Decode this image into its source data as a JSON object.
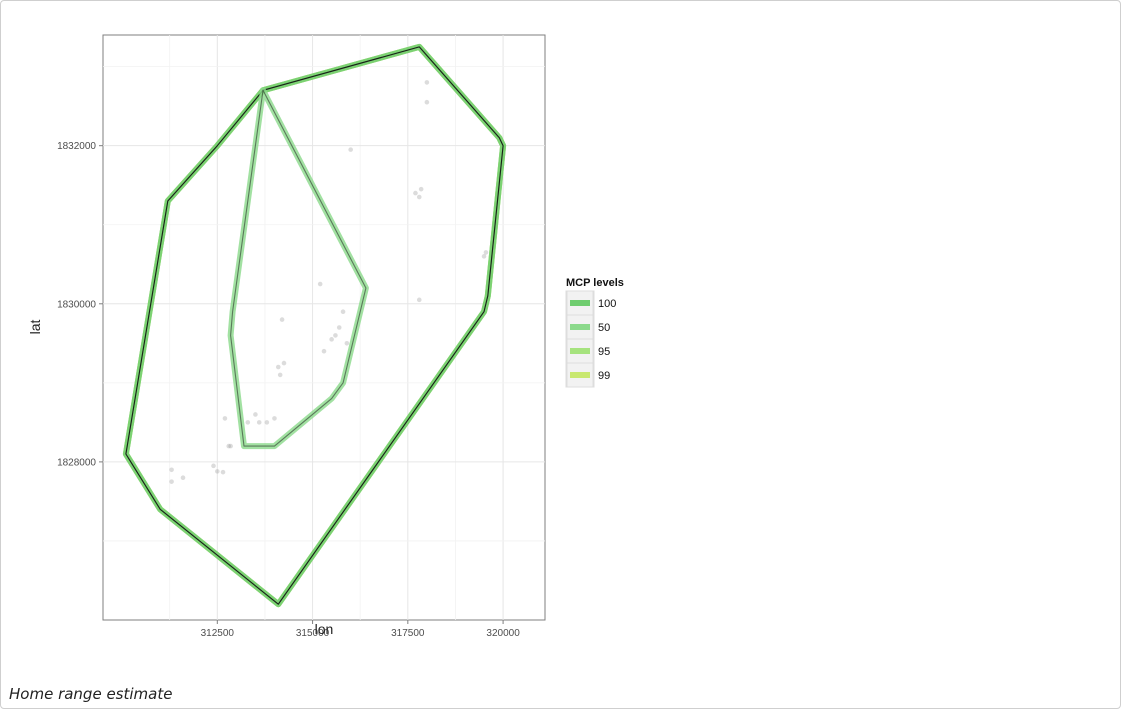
{
  "caption": "Home range estimate",
  "chart_data": {
    "type": "scatter",
    "xlabel": "lon",
    "ylabel": "lat",
    "xlim": [
      309500,
      321100
    ],
    "ylim": [
      1826000,
      1833400
    ],
    "x_ticks": [
      312500,
      315000,
      317500,
      320000
    ],
    "x_tick_labels": [
      "312500",
      "315000",
      "317500",
      "320000"
    ],
    "y_ticks": [
      1828000,
      1830000,
      1832000
    ],
    "y_tick_labels": [
      "1828000",
      "1830000",
      "1832000"
    ],
    "grid": true,
    "legend": {
      "title": "MCP levels",
      "position": "right",
      "entries": [
        "100",
        "50",
        "95",
        "99"
      ],
      "colors": [
        "#6fcd6f",
        "#8bd98b",
        "#a6e37e",
        "#c8e86f"
      ]
    },
    "points": [
      [
        311300,
        1827900
      ],
      [
        311300,
        1827750
      ],
      [
        311600,
        1827800
      ],
      [
        312400,
        1827950
      ],
      [
        312500,
        1827880
      ],
      [
        312650,
        1827870
      ],
      [
        312700,
        1828550
      ],
      [
        312800,
        1828200
      ],
      [
        312850,
        1828200
      ],
      [
        313300,
        1828500
      ],
      [
        313500,
        1828600
      ],
      [
        313600,
        1828500
      ],
      [
        313800,
        1828500
      ],
      [
        314000,
        1828550
      ],
      [
        314100,
        1829200
      ],
      [
        314150,
        1829100
      ],
      [
        314250,
        1829250
      ],
      [
        314200,
        1829800
      ],
      [
        315200,
        1830250
      ],
      [
        315300,
        1829400
      ],
      [
        315500,
        1829550
      ],
      [
        315600,
        1829600
      ],
      [
        315700,
        1829700
      ],
      [
        315900,
        1829500
      ],
      [
        315800,
        1829900
      ],
      [
        316000,
        1831950
      ],
      [
        317700,
        1831400
      ],
      [
        317800,
        1831350
      ],
      [
        317850,
        1831450
      ],
      [
        318000,
        1832550
      ],
      [
        318000,
        1832800
      ],
      [
        317800,
        1830050
      ],
      [
        319500,
        1830600
      ],
      [
        319550,
        1830650
      ]
    ],
    "series": [
      {
        "name": "100",
        "color": "#6fcd6f",
        "polygon": [
          [
            317800,
            1833250
          ],
          [
            319900,
            1832100
          ],
          [
            320000,
            1832000
          ],
          [
            319600,
            1830100
          ],
          [
            319500,
            1829900
          ],
          [
            314100,
            1826200
          ],
          [
            311000,
            1827400
          ],
          [
            310100,
            1828100
          ],
          [
            311200,
            1831300
          ],
          [
            312500,
            1832000
          ],
          [
            313700,
            1832700
          ]
        ]
      },
      {
        "name": "50",
        "color": "#8bd98b",
        "polygon": [
          [
            313700,
            1832700
          ],
          [
            316400,
            1830200
          ],
          [
            315800,
            1829000
          ],
          [
            315500,
            1828800
          ],
          [
            314000,
            1828200
          ],
          [
            313200,
            1828200
          ],
          [
            312850,
            1829600
          ],
          [
            312900,
            1829900
          ]
        ]
      },
      {
        "name": "95",
        "color": "#a6e37e",
        "polygon": [
          [
            317800,
            1833250
          ],
          [
            319900,
            1832100
          ],
          [
            320000,
            1832000
          ],
          [
            319600,
            1830100
          ],
          [
            319500,
            1829900
          ],
          [
            314100,
            1826200
          ],
          [
            311000,
            1827400
          ],
          [
            310100,
            1828100
          ],
          [
            311200,
            1831300
          ],
          [
            312500,
            1832000
          ],
          [
            313700,
            1832700
          ]
        ]
      },
      {
        "name": "99",
        "color": "#c8e86f",
        "polygon": [
          [
            317800,
            1833250
          ],
          [
            319900,
            1832100
          ],
          [
            320000,
            1832000
          ],
          [
            319600,
            1830100
          ],
          [
            319500,
            1829900
          ],
          [
            314100,
            1826200
          ],
          [
            311000,
            1827400
          ],
          [
            310100,
            1828100
          ],
          [
            311200,
            1831300
          ],
          [
            312500,
            1832000
          ],
          [
            313700,
            1832700
          ]
        ]
      }
    ]
  }
}
